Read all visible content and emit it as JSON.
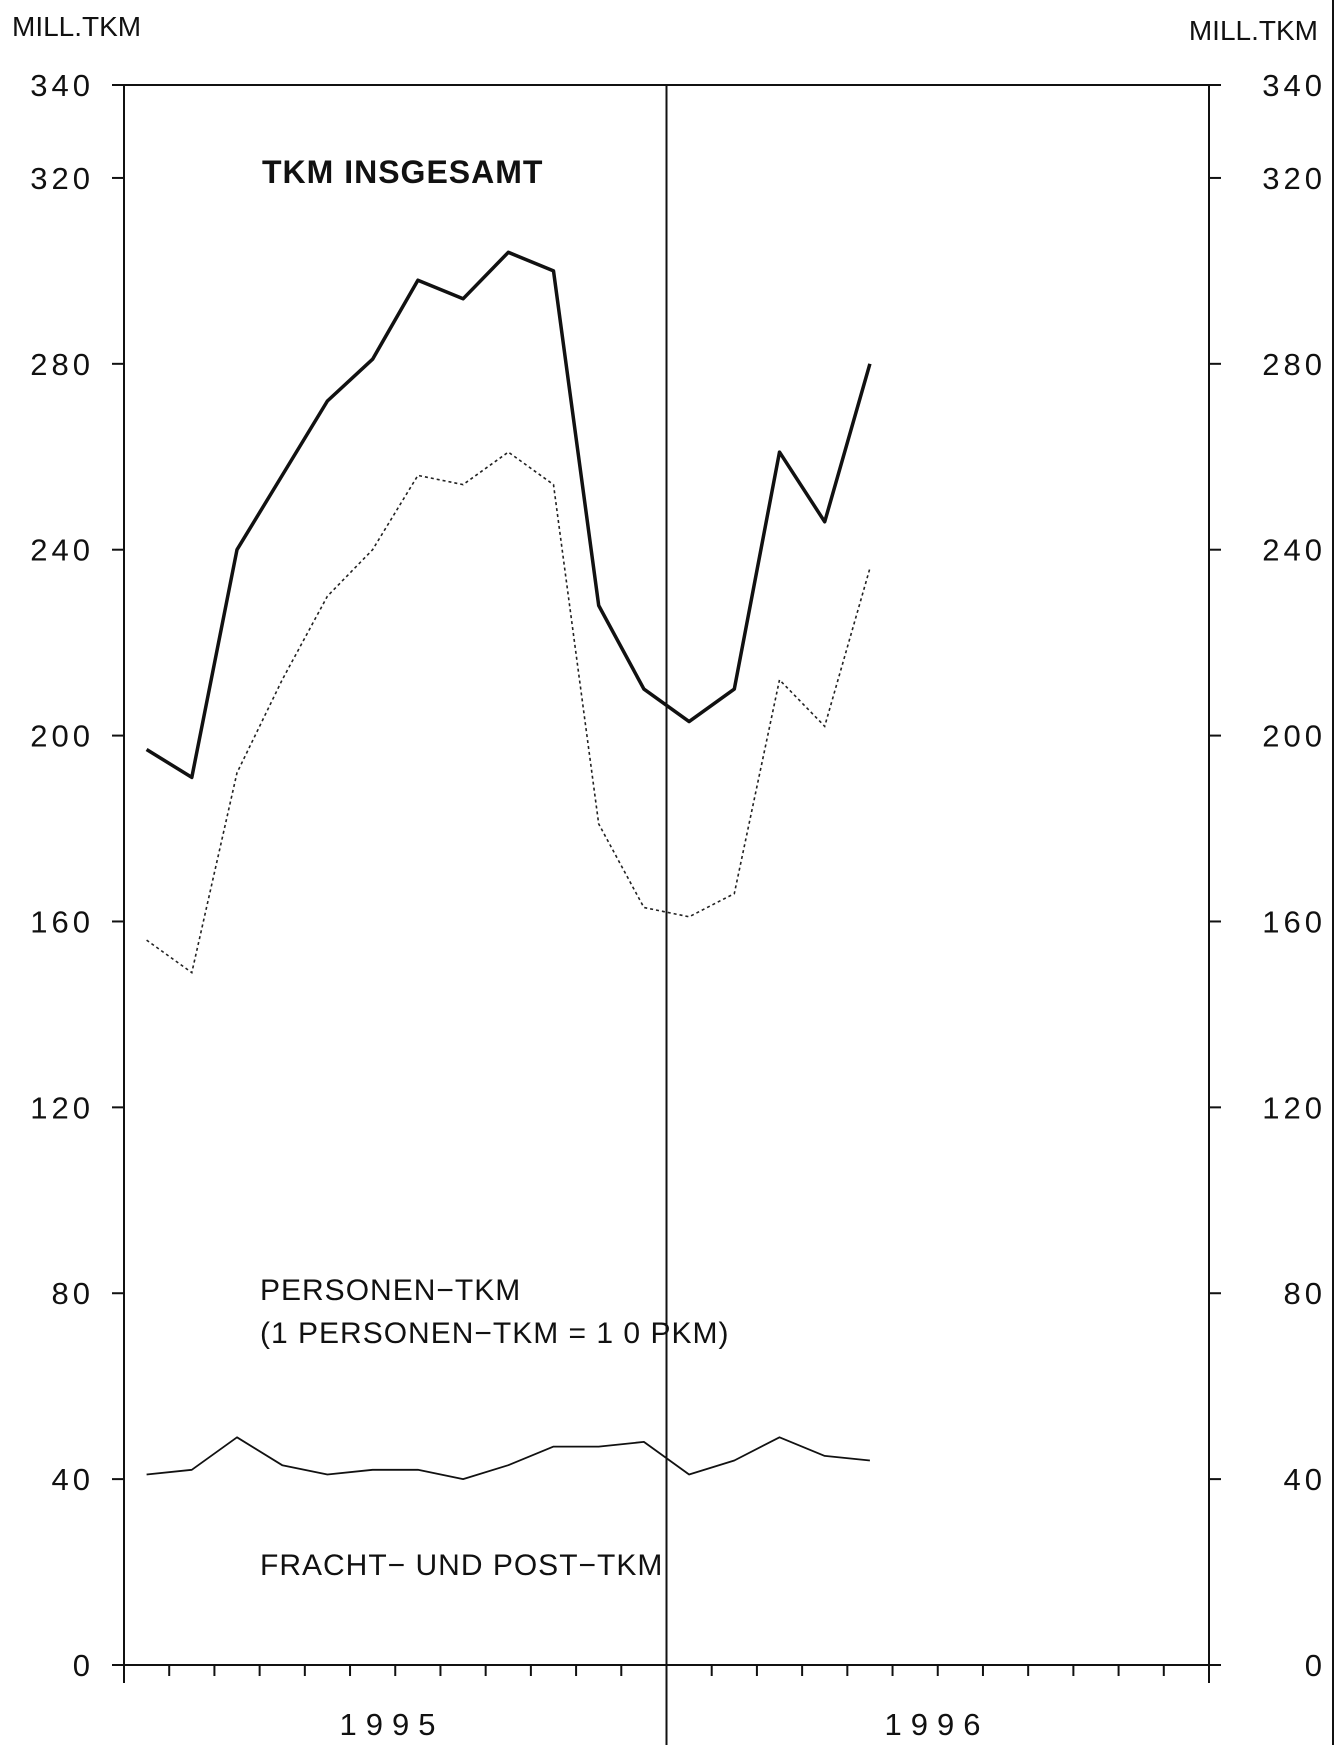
{
  "chart_data": {
    "type": "line",
    "ylabel_left": "MILL.TKM",
    "ylabel_right": "MILL.TKM",
    "ylim": [
      0,
      340
    ],
    "yticks": [
      0,
      40,
      80,
      120,
      160,
      200,
      240,
      280,
      320,
      340
    ],
    "x_labels": [
      "1995",
      "1996"
    ],
    "x_months": 24,
    "divider_after_month": 12,
    "grid": false,
    "legend": "none",
    "series": [
      {
        "name": "TKM INSGESAMT",
        "style": "solid-bold",
        "values": [
          197,
          191,
          240,
          256,
          272,
          281,
          298,
          294,
          304,
          300,
          228,
          210,
          203,
          210,
          261,
          246,
          280
        ]
      },
      {
        "name": "PERSONEN-TKM",
        "style": "dotted",
        "values": [
          156,
          149,
          192,
          212,
          230,
          240,
          256,
          254,
          261,
          254,
          181,
          163,
          161,
          166,
          212,
          202,
          236
        ]
      },
      {
        "name": "FRACHT- UND POST-TKM",
        "style": "solid-thin",
        "values": [
          41,
          42,
          49,
          43,
          41,
          42,
          42,
          40,
          43,
          47,
          47,
          48,
          41,
          44,
          49,
          45,
          44
        ]
      }
    ],
    "annotations": [
      {
        "id": "total",
        "text": "TKM INSGESAMT"
      },
      {
        "id": "personen_1",
        "text": "PERSONEN−TKM"
      },
      {
        "id": "personen_2",
        "text": "(1 PERSONEN−TKM = 1 0 PKM)"
      },
      {
        "id": "fracht",
        "text": "FRACHT− UND POST−TKM"
      }
    ]
  }
}
